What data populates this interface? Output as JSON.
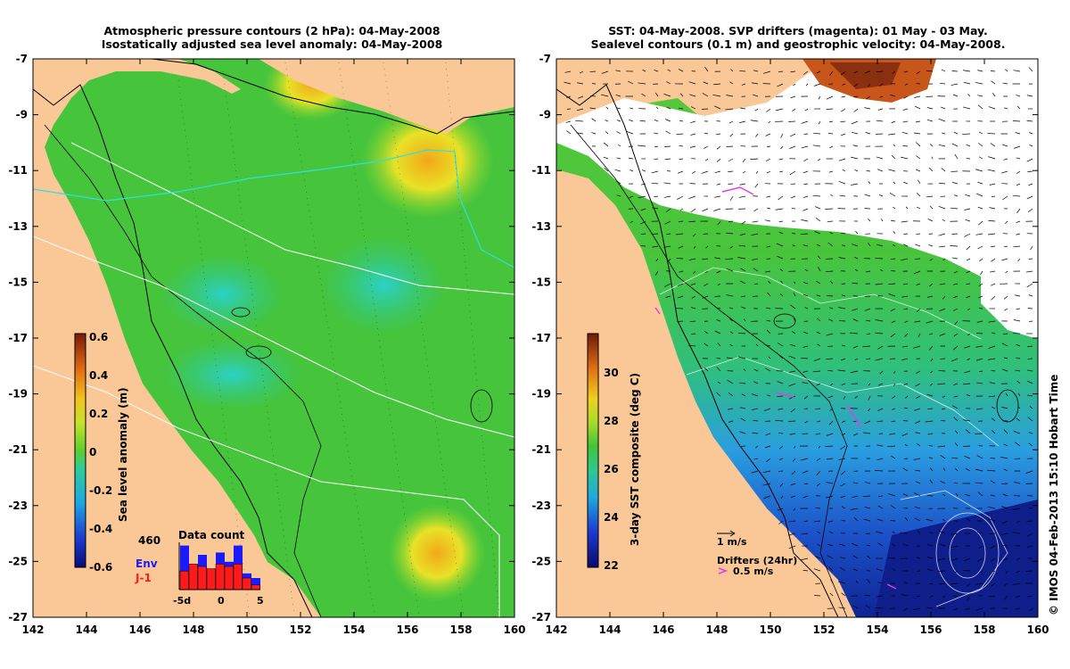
{
  "left_panel": {
    "title_line1": "Atmospheric pressure contours (2 hPa): 04-May-2008",
    "title_line2": "Isostatically adjusted sea level anomaly: 04-May-2008",
    "x_ticks": [
      "142",
      "144",
      "146",
      "148",
      "150",
      "152",
      "154",
      "156",
      "158",
      "160"
    ],
    "y_ticks": [
      "-7",
      "-9",
      "-11",
      "-13",
      "-15",
      "-17",
      "-19",
      "-21",
      "-23",
      "-25",
      "-27"
    ],
    "colorbar": {
      "label": "Sea level anomaly (m)",
      "ticks": [
        "0.6",
        "0.4",
        "0.2",
        "0",
        "-0.2",
        "-0.4",
        "-0.6"
      ]
    },
    "data_count": {
      "title": "Data count",
      "max_label": "460",
      "env_label": "Env",
      "j1_label": "J-1",
      "x_ticks": [
        "-5d",
        "0",
        "5"
      ],
      "env_values": [
        0.95,
        0.55,
        0.75,
        0.45,
        0.8,
        0.6,
        0.95,
        0.35,
        0.25
      ],
      "j1_values": [
        0.4,
        0.55,
        0.5,
        0.45,
        0.55,
        0.5,
        0.55,
        0.25,
        0.1
      ]
    }
  },
  "right_panel": {
    "title_line1": "SST: 04-May-2008. SVP drifters (magenta): 01 May - 03 May.",
    "title_line2": "Sealevel contours (0.1 m) and geostrophic velocity: 04-May-2008.",
    "x_ticks": [
      "142",
      "144",
      "146",
      "148",
      "150",
      "152",
      "154",
      "156",
      "158",
      "160"
    ],
    "y_ticks": [
      "-7",
      "-9",
      "-11",
      "-13",
      "-15",
      "-17",
      "-19",
      "-21",
      "-23",
      "-25",
      "-27"
    ],
    "colorbar": {
      "label": "3-day SST composite (deg C)",
      "ticks": [
        "30",
        "28",
        "26",
        "24",
        "22"
      ]
    },
    "scale_arrow_label": "1 m/s",
    "drifters_label": "Drifters (24hr)",
    "drifter_speed_label": "0.5 m/s"
  },
  "credit": "© IMOS 04-Feb-2013 15:10 Hobart Time",
  "colors": {
    "land": "#f9c896",
    "sla_green": "#46c43c",
    "sla_teal": "#2fcaa4",
    "sla_yellow": "#e8e227",
    "sst_blue": "#1c52c8",
    "drifter": "#e23ce6"
  }
}
